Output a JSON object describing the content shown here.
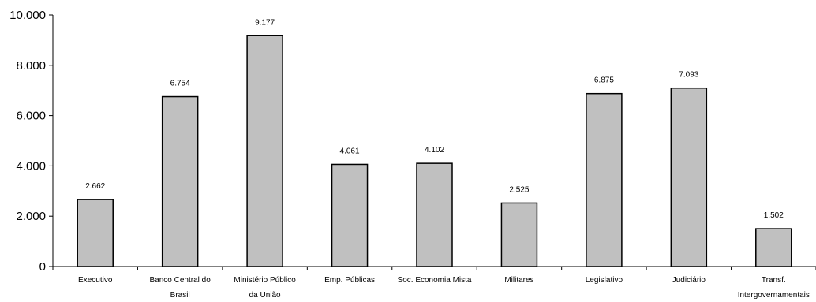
{
  "chart_data": {
    "type": "bar",
    "categories": [
      [
        "Executivo"
      ],
      [
        "Banco Central do",
        "Brasil"
      ],
      [
        "Ministério Público",
        "da União"
      ],
      [
        "Emp. Públicas"
      ],
      [
        "Soc. Economia Mista"
      ],
      [
        "Militares"
      ],
      [
        "Legislativo"
      ],
      [
        "Judiciário"
      ],
      [
        "Transf.",
        "Intergovernamentais"
      ]
    ],
    "values": [
      2662,
      6754,
      9177,
      4061,
      4102,
      2525,
      6875,
      7093,
      1502
    ],
    "data_labels": [
      "2.662",
      "6.754",
      "9.177",
      "4.061",
      "4.102",
      "2.525",
      "6.875",
      "7.093",
      "1.502"
    ],
    "yticks": [
      0,
      2000,
      4000,
      6000,
      8000,
      10000
    ],
    "ytick_labels": [
      "0",
      "2.000",
      "4.000",
      "6.000",
      "8.000",
      "10.000"
    ],
    "ylim": [
      0,
      10000
    ],
    "grid": false,
    "legend": "none",
    "colors": {
      "bar_fill": "#c0c0c0",
      "bar_stroke": "#000000",
      "axis": "#000000"
    }
  }
}
